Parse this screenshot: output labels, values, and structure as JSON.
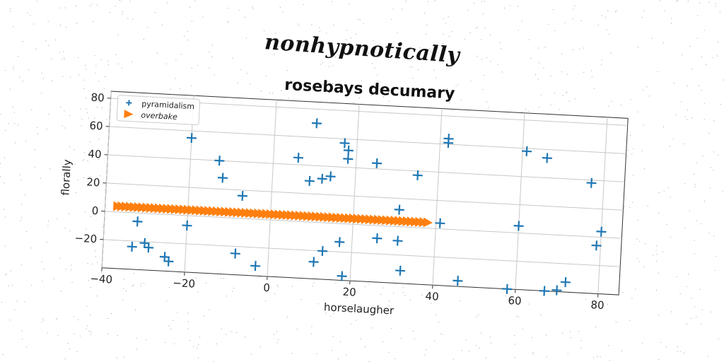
{
  "suptitle": "nonhypnotically",
  "chart_data": {
    "type": "scatter",
    "title": "rosebays decumary",
    "xlabel": "horselaugher",
    "ylabel": "florally",
    "xlim": [
      -40,
      85
    ],
    "ylim": [
      -40,
      85
    ],
    "xticks": [
      -40,
      -20,
      0,
      20,
      40,
      60,
      80
    ],
    "yticks": [
      -20,
      0,
      20,
      40,
      60,
      80
    ],
    "xtick_labels": [
      "−40",
      "−20",
      "0",
      "20",
      "40",
      "60",
      "80"
    ],
    "ytick_labels": [
      "−20",
      "0",
      "20",
      "40",
      "60",
      "80"
    ],
    "grid": true,
    "legend_position": "top-left",
    "series": [
      {
        "name": "pyramidalism",
        "marker": "plus",
        "color": "#1f77b4",
        "x": [
          10,
          17,
          18,
          18,
          6,
          25,
          35,
          42,
          42,
          61,
          66,
          77,
          -20,
          -13,
          -12,
          -7,
          9,
          12,
          14,
          31,
          41,
          60,
          80,
          79,
          -32,
          -30,
          -29,
          -33,
          -20,
          -25,
          -24,
          -8,
          -3,
          13,
          11,
          17,
          18,
          26,
          31,
          32,
          46,
          58,
          67,
          70,
          72
        ],
        "y": [
          70,
          57,
          52,
          46,
          45,
          44,
          37,
          64,
          61,
          58,
          54,
          38,
          55,
          40,
          28,
          16,
          29,
          31,
          33,
          12,
          4,
          5,
          4,
          -6,
          -6,
          -21,
          -24,
          -24,
          -7,
          -30,
          -33,
          -25,
          -33,
          -20,
          -28,
          -13,
          -37,
          -9,
          -10,
          -31,
          -36,
          -40,
          -40,
          -39,
          -33
        ]
      },
      {
        "name": "overbake",
        "marker": "triangle-right",
        "color": "#ff7f0e",
        "x_start": -37,
        "x_end": 38,
        "x_step": 1,
        "y": 4
      }
    ]
  }
}
